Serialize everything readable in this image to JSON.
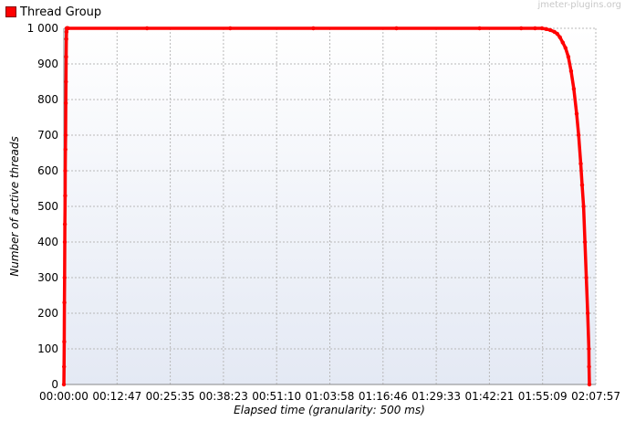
{
  "watermark": "jmeter-plugins.org",
  "chart_data": {
    "type": "line",
    "title": "",
    "xlabel": "Elapsed time (granularity: 500 ms)",
    "ylabel": "Number of active threads",
    "x_ticks": [
      "00:00:00",
      "00:12:47",
      "00:25:35",
      "00:38:23",
      "00:51:10",
      "01:03:58",
      "01:16:46",
      "01:29:33",
      "01:42:21",
      "01:55:09",
      "02:07:57"
    ],
    "y_ticks": [
      "0",
      "100",
      "200",
      "300",
      "400",
      "500",
      "600",
      "700",
      "800",
      "900",
      "1 000"
    ],
    "ylim": [
      0,
      1000
    ],
    "xlim_seconds": [
      0,
      7677
    ],
    "grid": true,
    "legend_position": "top-left",
    "series": [
      {
        "name": "Thread Group",
        "color": "#ff0000",
        "x_seconds": [
          0,
          3,
          5,
          8,
          10,
          13,
          15,
          18,
          20,
          23,
          25,
          28,
          30,
          33,
          35,
          38,
          40,
          45,
          50,
          55,
          60,
          1200,
          2400,
          3600,
          4800,
          6000,
          6600,
          6800,
          6900,
          6960,
          7020,
          7080,
          7120,
          7160,
          7200,
          7240,
          7280,
          7320,
          7360,
          7400,
          7430,
          7460,
          7480,
          7500,
          7520,
          7540,
          7560,
          7577,
          7580,
          7585
        ],
        "y": [
          0,
          50,
          120,
          230,
          300,
          400,
          450,
          530,
          600,
          660,
          700,
          790,
          850,
          920,
          970,
          990,
          1000,
          1000,
          1000,
          1000,
          1000,
          1000,
          1000,
          1000,
          1000,
          1000,
          1000,
          1000,
          1000,
          998,
          995,
          990,
          985,
          975,
          960,
          945,
          920,
          880,
          830,
          760,
          700,
          620,
          560,
          500,
          400,
          300,
          200,
          100,
          50,
          0
        ]
      }
    ]
  }
}
